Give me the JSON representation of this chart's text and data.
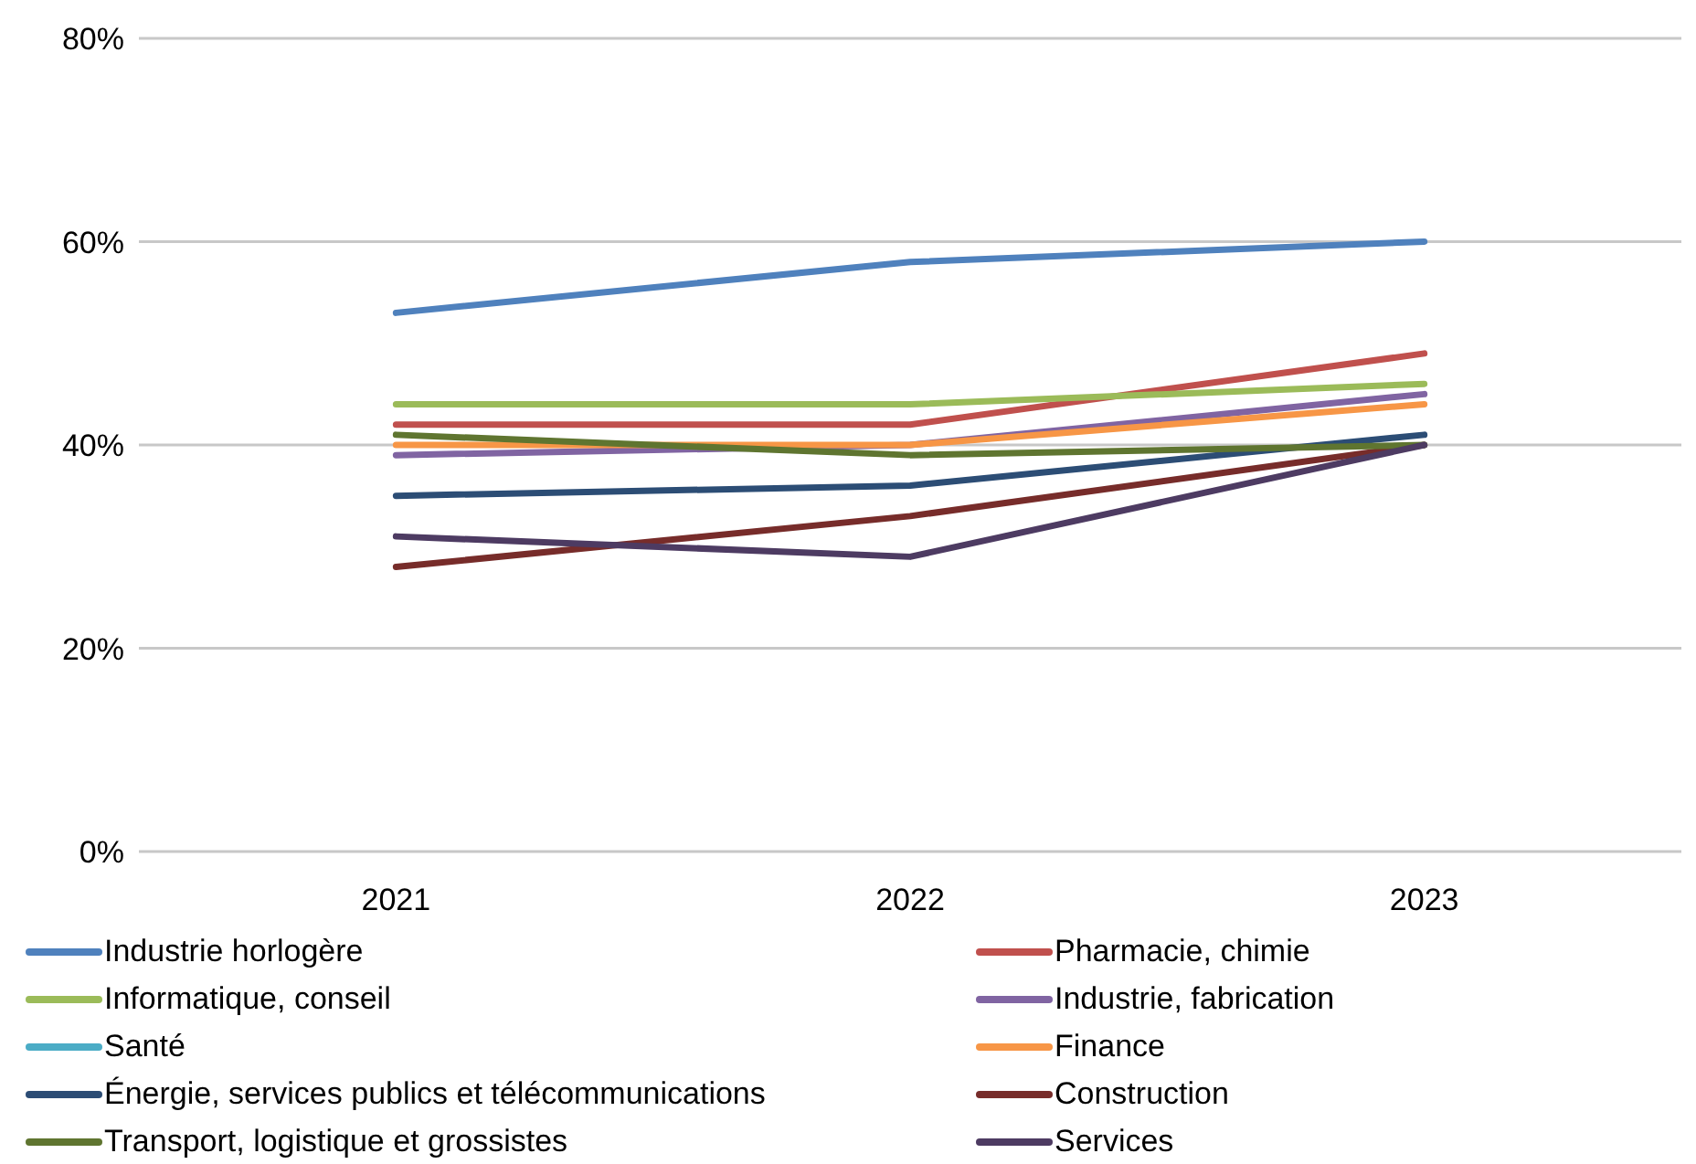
{
  "chart_data": {
    "type": "line",
    "categories": [
      "2021",
      "2022",
      "2023"
    ],
    "ylim": [
      0,
      80
    ],
    "yticks": [
      {
        "value": 0,
        "label": "0%"
      },
      {
        "value": 20,
        "label": "20%"
      },
      {
        "value": 40,
        "label": "40%"
      },
      {
        "value": 60,
        "label": "60%"
      },
      {
        "value": 80,
        "label": "80%"
      }
    ],
    "grid": "y",
    "legend": "bottom",
    "marker": "none",
    "line_style": "solid",
    "series": [
      {
        "name": "Industrie horlogère",
        "color": "#4f81bd",
        "values": [
          53,
          58,
          60
        ]
      },
      {
        "name": "Pharmacie, chimie",
        "color": "#c0504d",
        "values": [
          42,
          42,
          49
        ]
      },
      {
        "name": "Informatique, conseil",
        "color": "#9bbb59",
        "values": [
          44,
          44,
          46
        ]
      },
      {
        "name": "Industrie, fabrication",
        "color": "#8064a2",
        "values": [
          39,
          40,
          45
        ]
      },
      {
        "name": "Santé",
        "color": "#4bacc6",
        "values": [
          null,
          null,
          null
        ]
      },
      {
        "name": "Finance",
        "color": "#f79646",
        "values": [
          40,
          40,
          44
        ]
      },
      {
        "name": "Énergie, services publics et télécommunications",
        "color": "#2c4d75",
        "values": [
          35,
          36,
          41
        ]
      },
      {
        "name": "Construction",
        "color": "#772c2a",
        "values": [
          28,
          33,
          40
        ]
      },
      {
        "name": "Transport, logistique et grossistes",
        "color": "#5f7530",
        "values": [
          41,
          39,
          40
        ]
      },
      {
        "name": "Services",
        "color": "#4d3b62",
        "values": [
          31,
          29,
          40
        ]
      }
    ]
  }
}
